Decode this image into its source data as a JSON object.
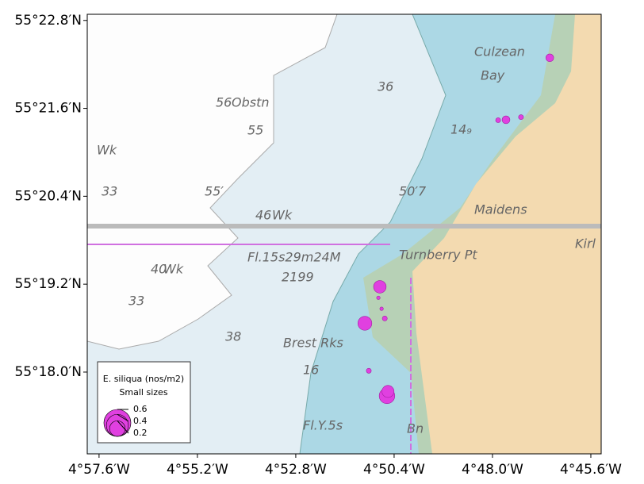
{
  "chart_data": {
    "type": "bubble",
    "x": [
      -4.7767,
      -4.7945,
      -4.7977,
      -4.7884,
      -4.8458,
      -4.8464,
      -4.8451,
      -4.8438,
      -4.8519,
      -4.8503,
      -4.8429,
      -4.8425
    ],
    "y": [
      55.3715,
      55.3574,
      55.3573,
      55.358,
      55.3194,
      55.3169,
      55.3144,
      55.3122,
      55.3111,
      55.3003,
      55.2946,
      55.2956
    ],
    "sizes": [
      0.05,
      0.05,
      0.02,
      0.02,
      0.13,
      0.01,
      0.01,
      0.02,
      0.16,
      0.02,
      0.2,
      0.12
    ],
    "color": "#e040e0",
    "xlim": [
      -4.9648,
      -4.7558
    ],
    "ylim": [
      55.2814,
      55.3814
    ],
    "xticks": [
      {
        "value": -4.96,
        "label": "4°57.6′W"
      },
      {
        "value": -4.92,
        "label": "4°55.2′W"
      },
      {
        "value": -4.88,
        "label": "4°52.8′W"
      },
      {
        "value": -4.84,
        "label": "4°50.4′W"
      },
      {
        "value": -4.8,
        "label": "4°48.0′W"
      },
      {
        "value": -4.76,
        "label": "4°45.6′W"
      }
    ],
    "yticks": [
      {
        "value": 55.38,
        "label": "55°22.8′N"
      },
      {
        "value": 55.36,
        "label": "55°21.6′N"
      },
      {
        "value": 55.34,
        "label": "55°20.4′N"
      },
      {
        "value": 55.32,
        "label": "55°19.2′N"
      },
      {
        "value": 55.3,
        "label": "55°18.0′N"
      }
    ],
    "legend": {
      "title": "E. siliqua (nos/m2)",
      "subtitle": "Small sizes",
      "sizes": [
        0.6,
        0.4,
        0.2
      ]
    }
  },
  "map_labels": [
    "Culzean",
    "Bay",
    "36",
    "56",
    "Obstn",
    "55",
    "Wk",
    "33",
    "55′",
    "46",
    "Wk",
    "50′7",
    "Maidens",
    "Fl.15s29m24M",
    "Turnberry Pt",
    "2199",
    "40",
    "Wk",
    "33",
    "38",
    "Brest Rks",
    "16",
    "Fl.Y.5s",
    "Bn",
    "14₉",
    "Kirl"
  ]
}
